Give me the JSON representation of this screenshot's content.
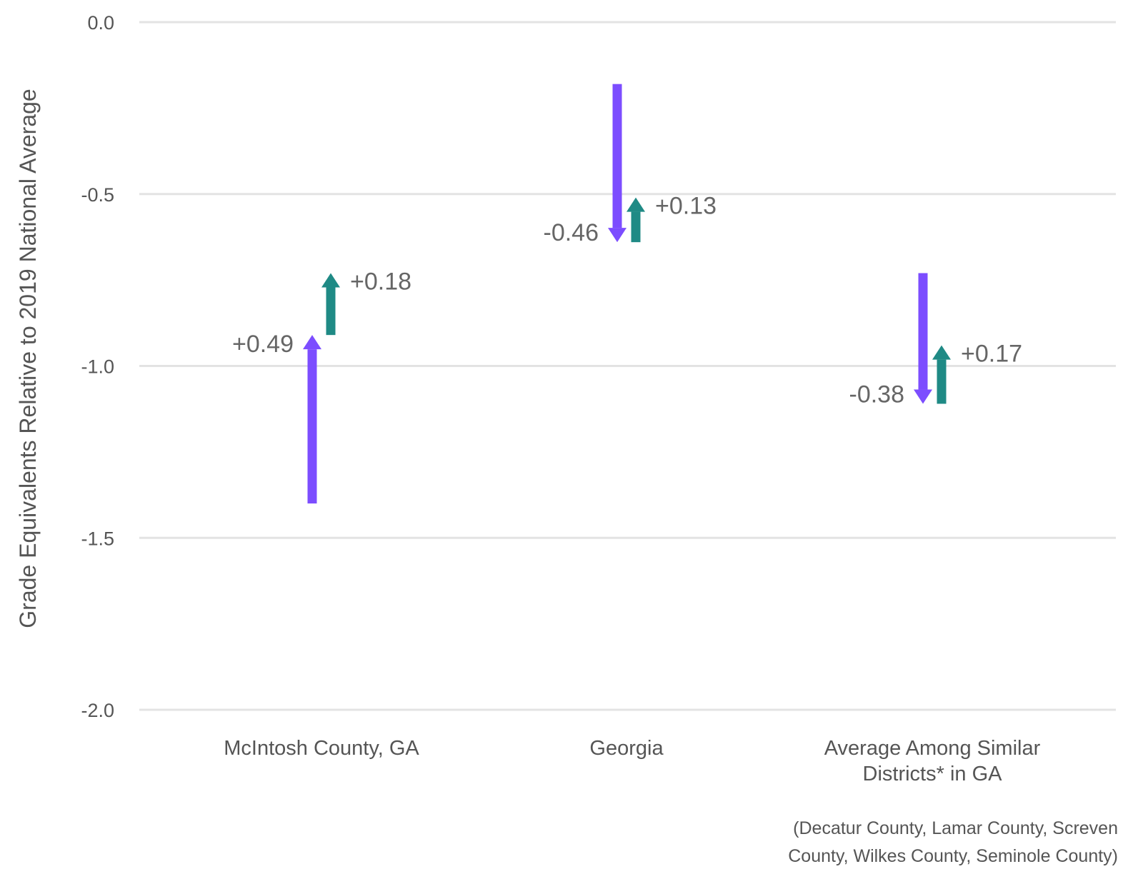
{
  "chart_data": {
    "type": "arrow-change",
    "ylabel": "Grade Equivalents Relative to 2019 National Average",
    "ylim": [
      -2.0,
      0.0
    ],
    "yticks": [
      0.0,
      -0.5,
      -1.0,
      -1.5,
      -2.0
    ],
    "ytick_labels": [
      "0.0",
      "-0.5",
      "-1.0",
      "-1.5",
      "-2.0"
    ],
    "grid": true,
    "colors": {
      "first_change": "#7c4dff",
      "second_change": "#1f8a85",
      "grid": "#e3e3e3"
    },
    "categories": [
      {
        "label_lines": [
          "McIntosh County, GA"
        ],
        "arrows": [
          {
            "series": "first_change",
            "from": -1.4,
            "to": -0.91,
            "label": "+0.49",
            "label_side": "left"
          },
          {
            "series": "second_change",
            "from": -0.91,
            "to": -0.73,
            "label": "+0.18",
            "label_side": "right"
          }
        ]
      },
      {
        "label_lines": [
          "Georgia"
        ],
        "arrows": [
          {
            "series": "first_change",
            "from": -0.18,
            "to": -0.64,
            "label": "-0.46",
            "label_side": "left"
          },
          {
            "series": "second_change",
            "from": -0.64,
            "to": -0.51,
            "label": "+0.13",
            "label_side": "right"
          }
        ]
      },
      {
        "label_lines": [
          "Average Among Similar",
          "Districts* in GA"
        ],
        "arrows": [
          {
            "series": "first_change",
            "from": -0.73,
            "to": -1.11,
            "label": "-0.38",
            "label_side": "left"
          },
          {
            "series": "second_change",
            "from": -1.11,
            "to": -0.94,
            "label": "+0.17",
            "label_side": "right"
          }
        ]
      }
    ],
    "footnote_lines": [
      "(Decatur County, Lamar County, Screven",
      "County, Wilkes County, Seminole County)"
    ]
  }
}
